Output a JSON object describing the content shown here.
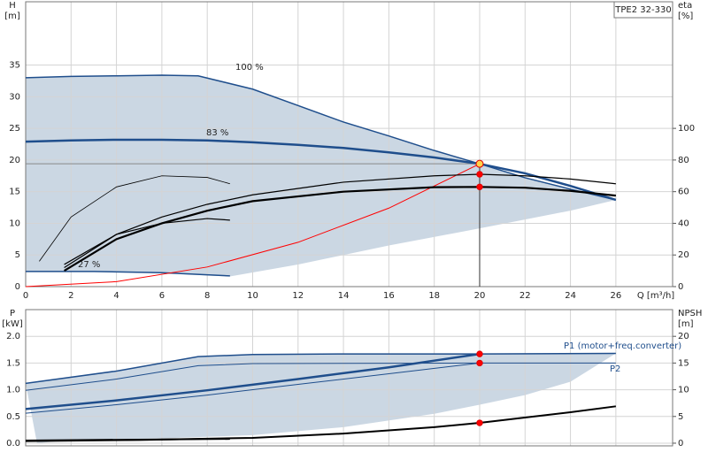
{
  "chart_data": [
    {
      "type": "line",
      "title": "TPE2 32-330",
      "ylabel": "H",
      "yunit": "[m]",
      "y2label": "eta",
      "y2unit": "[%]",
      "xlabel": "Q [m³/h]",
      "xlim": [
        0,
        28.5
      ],
      "xticks": [
        0,
        2,
        4,
        6,
        8,
        10,
        12,
        14,
        16,
        18,
        20,
        22,
        24,
        26
      ],
      "ylim": [
        0,
        45
      ],
      "yticks": [
        0,
        5,
        10,
        15,
        20,
        25,
        30,
        35
      ],
      "y2lim": [
        0,
        180
      ],
      "y2ticks": [
        0,
        20,
        40,
        60,
        80,
        100
      ],
      "grid": true,
      "shade": {
        "color": "#cbd7e3",
        "x": [
          0,
          2,
          4,
          6,
          7.6,
          10,
          12,
          14,
          16,
          18,
          20,
          22,
          24,
          26,
          24,
          20,
          16,
          12,
          9,
          5,
          0
        ],
        "values": [
          33,
          33.2,
          33.3,
          33.4,
          33.3,
          31.2,
          28.6,
          26,
          23.8,
          21.5,
          19.4,
          17.2,
          15.4,
          13.7,
          12,
          9.2,
          6.5,
          3.5,
          1.6,
          2.3,
          2.4
        ]
      },
      "series": [
        {
          "name": "100 %",
          "color": "#1f4e8c",
          "width": 1.5,
          "x": [
            0,
            2,
            4,
            6,
            7.6,
            10,
            12,
            14,
            16,
            18,
            20,
            22,
            24,
            26
          ],
          "values": [
            33,
            33.2,
            33.3,
            33.4,
            33.3,
            31.2,
            28.6,
            26,
            23.8,
            21.5,
            19.4,
            17.2,
            15.4,
            13.7
          ]
        },
        {
          "name": "83 %",
          "color": "#1f4e8c",
          "width": 2.5,
          "x": [
            0,
            2,
            4,
            6,
            8,
            10,
            12,
            14,
            16,
            18,
            20,
            22,
            24,
            26
          ],
          "values": [
            22.9,
            23.1,
            23.2,
            23.2,
            23.1,
            22.8,
            22.4,
            21.9,
            21.2,
            20.4,
            19.4,
            17.9,
            15.9,
            13.7
          ]
        },
        {
          "name": "27 %",
          "color": "#1f4e8c",
          "width": 1.5,
          "x": [
            0,
            3,
            6,
            9
          ],
          "values": [
            2.4,
            2.4,
            2.2,
            1.7
          ]
        },
        {
          "color": "#ff0000",
          "width": 1,
          "x": [
            0,
            4,
            8,
            12,
            16,
            20
          ],
          "values": [
            0,
            0.78,
            3.1,
            7.0,
            12.4,
            19.4
          ]
        },
        {
          "color": "#000000",
          "width": 1.2,
          "axis": "y2",
          "x": [
            1.7,
            4,
            6,
            8,
            10,
            14,
            18,
            20,
            22,
            24,
            26
          ],
          "values": [
            12,
            33,
            44,
            52,
            58,
            66,
            70,
            71,
            70,
            68,
            65
          ]
        },
        {
          "color": "#000000",
          "width": 2.2,
          "axis": "y2",
          "x": [
            1.7,
            4,
            6,
            8,
            10,
            14,
            18,
            20,
            22,
            24,
            26
          ],
          "values": [
            10,
            30,
            40,
            48,
            54,
            60,
            62.8,
            63,
            62.5,
            60.5,
            57.5
          ]
        },
        {
          "color": "#000000",
          "width": 0.8,
          "axis": "y2",
          "x": [
            0.6,
            2,
            4,
            6,
            8,
            9
          ],
          "values": [
            16,
            44,
            63,
            70,
            69,
            65
          ]
        },
        {
          "color": "#000000",
          "width": 1.2,
          "axis": "y2",
          "x": [
            1.7,
            4,
            6,
            8,
            9
          ],
          "values": [
            14,
            33,
            40,
            43,
            42
          ]
        }
      ],
      "duty_points": {
        "x": [
          20,
          20,
          20
        ],
        "values": [
          19.4,
          71,
          63
        ],
        "axis": [
          "y",
          "y2",
          "y2"
        ]
      }
    },
    {
      "type": "line",
      "ylabel": "P",
      "yunit": "[kW]",
      "y2label": "NPSH",
      "y2unit": "[m]",
      "xlim": [
        0,
        28.5
      ],
      "xticks": [
        0,
        2,
        4,
        6,
        8,
        10,
        12,
        14,
        16,
        18,
        20,
        22,
        24,
        26
      ],
      "ylim": [
        -0.05,
        2.5
      ],
      "yticks": [
        {
          "value": 0,
          "label": "0.0"
        },
        0.5,
        {
          "value": 1,
          "label": "1.0"
        },
        1.5,
        {
          "value": 2,
          "label": "2.0"
        }
      ],
      "y2lim": [
        -0.5,
        25
      ],
      "y2ticks": [
        0,
        5,
        10,
        15,
        20
      ],
      "grid": true,
      "shade": {
        "color": "#cbd7e3",
        "x": [
          0,
          4,
          7.6,
          10,
          14,
          20,
          26,
          24,
          22,
          20,
          18,
          14,
          10,
          6,
          2,
          0.5
        ],
        "values": [
          1.12,
          1.35,
          1.62,
          1.66,
          1.67,
          1.67,
          1.68,
          1.15,
          0.9,
          0.72,
          0.55,
          0.3,
          0.15,
          0.09,
          0.06,
          0
        ]
      },
      "series": [
        {
          "name": "P1 (motor+freq.converter)",
          "color": "#1f4e8c",
          "width": 1.5,
          "x": [
            0,
            4,
            7.6,
            10,
            14,
            20,
            26
          ],
          "values": [
            1.12,
            1.35,
            1.62,
            1.66,
            1.67,
            1.67,
            1.68
          ]
        },
        {
          "name": "P2",
          "color": "#1f4e8c",
          "width": 1,
          "x": [
            0,
            4,
            7.6,
            10,
            20,
            26
          ],
          "values": [
            0.99,
            1.2,
            1.45,
            1.49,
            1.5,
            1.5
          ]
        },
        {
          "color": "#1f4e8c",
          "width": 2.5,
          "x": [
            0,
            4,
            8,
            12,
            16,
            20
          ],
          "values": [
            0.64,
            0.8,
            0.99,
            1.2,
            1.42,
            1.67
          ]
        },
        {
          "color": "#1f4e8c",
          "width": 1,
          "x": [
            0,
            4,
            8,
            12,
            16,
            20
          ],
          "values": [
            0.56,
            0.72,
            0.9,
            1.1,
            1.3,
            1.5
          ]
        },
        {
          "color": "#000000",
          "width": 2,
          "axis": "y2",
          "x": [
            0,
            5,
            10,
            14,
            18,
            20,
            22,
            24,
            26
          ],
          "values": [
            0.4,
            0.6,
            1.0,
            1.8,
            3.0,
            3.8,
            4.8,
            5.8,
            6.9
          ]
        },
        {
          "color": "#000000",
          "width": 2,
          "x": [
            0,
            9
          ],
          "values": [
            0.05,
            0.08
          ]
        }
      ],
      "duty_points": {
        "x": [
          20,
          20,
          20
        ],
        "values": [
          1.67,
          1.5,
          3.8
        ],
        "axis": [
          "y",
          "y",
          "y2"
        ]
      }
    }
  ]
}
